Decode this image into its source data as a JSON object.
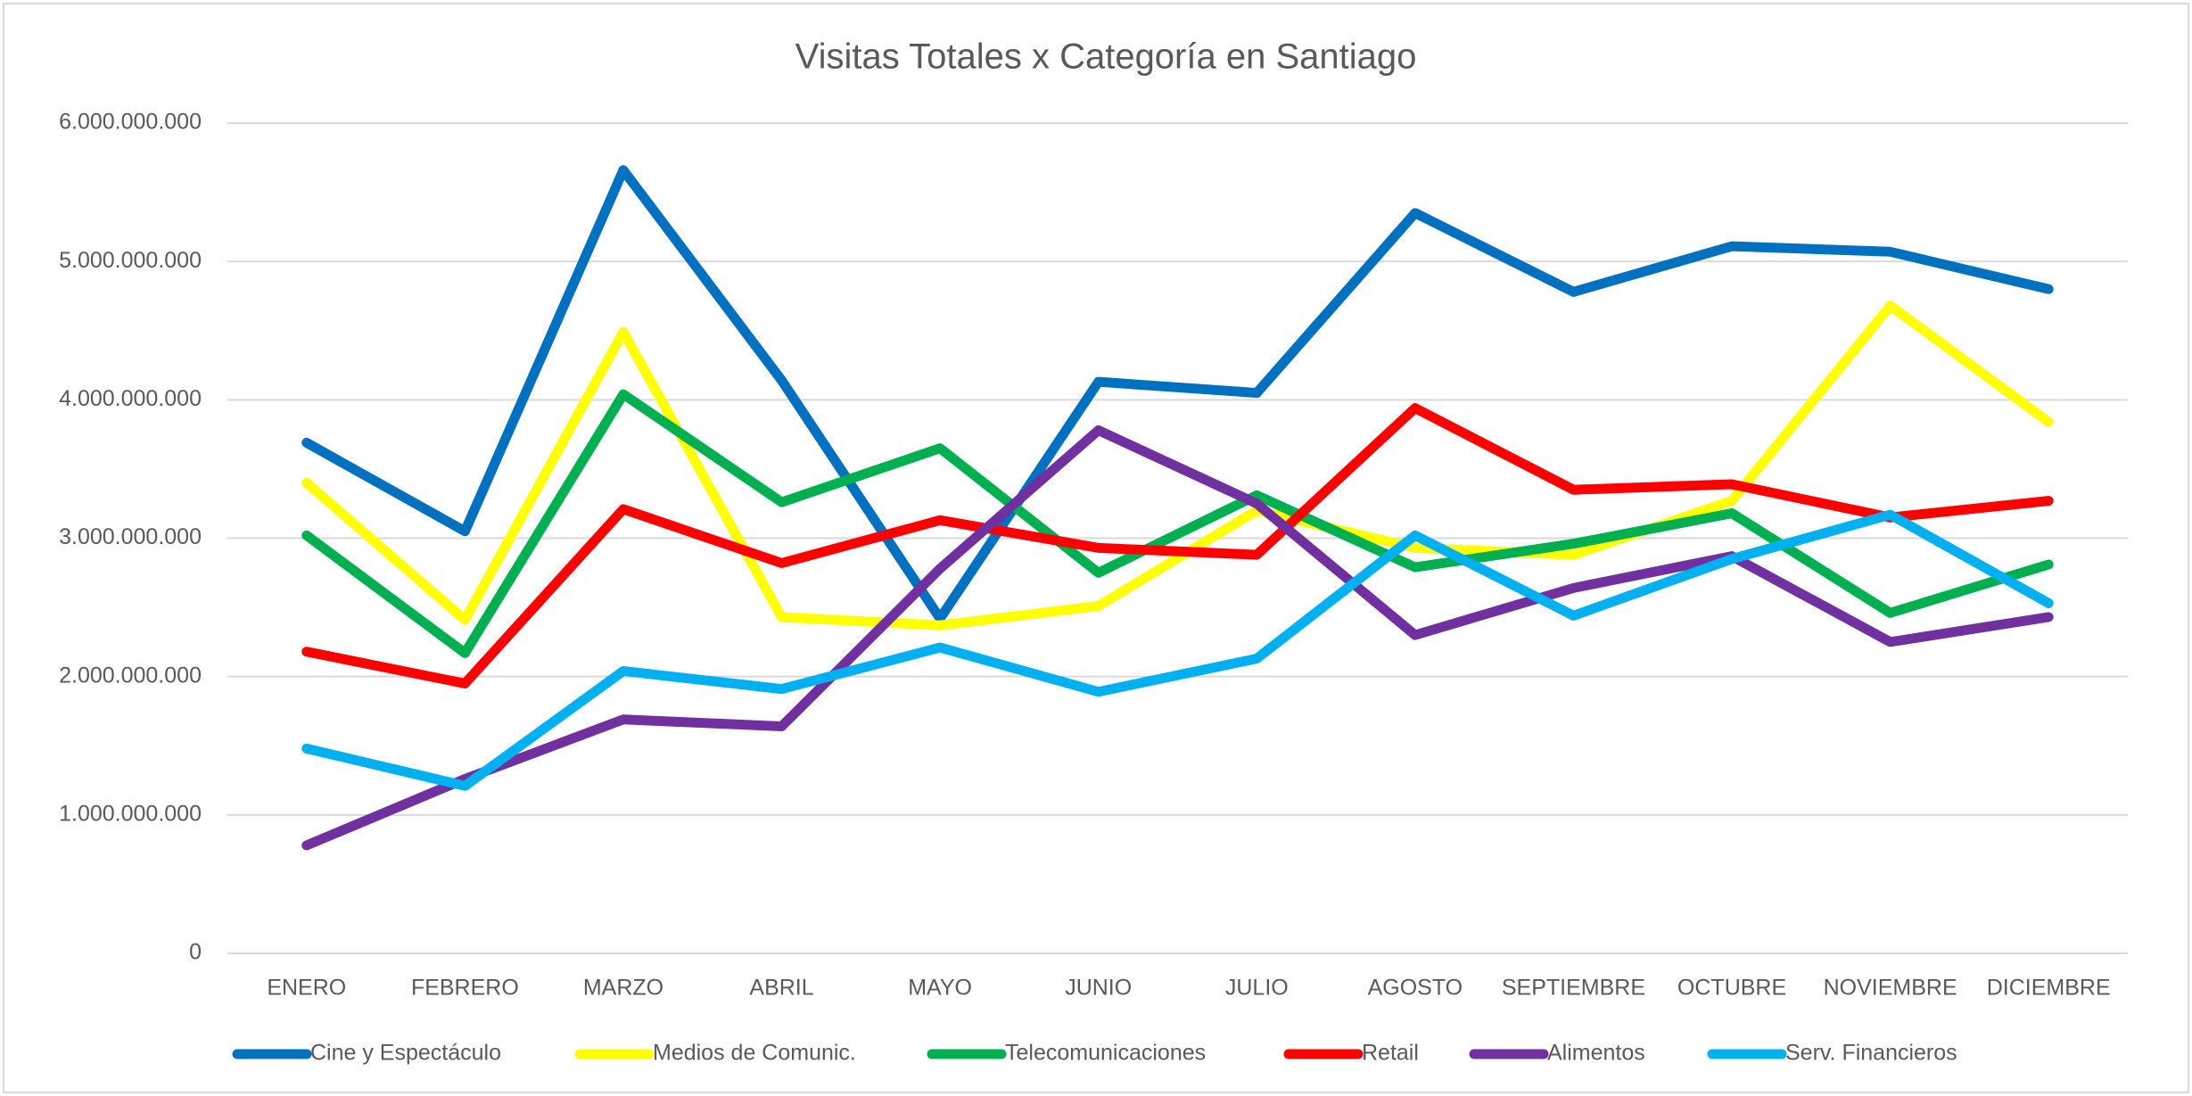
{
  "chart_data": {
    "type": "line",
    "title": "Visitas Totales x Categoría en Santiago",
    "categories": [
      "ENERO",
      "FEBRERO",
      "MARZO",
      "ABRIL",
      "MAYO",
      "JUNIO",
      "JULIO",
      "AGOSTO",
      "SEPTIEMBRE",
      "OCTUBRE",
      "NOVIEMBRE",
      "DICIEMBRE"
    ],
    "series": [
      {
        "name": "Cine y Espectáculo",
        "color": "#0070c0",
        "values": [
          3690000000,
          3050000000,
          5660000000,
          4140000000,
          2420000000,
          4130000000,
          4050000000,
          5350000000,
          4780000000,
          5110000000,
          5070000000,
          4800000000
        ]
      },
      {
        "name": "Medios de Comunic.",
        "color": "#ffff00",
        "values": [
          3400000000,
          2410000000,
          4490000000,
          2430000000,
          2370000000,
          2510000000,
          3200000000,
          2930000000,
          2880000000,
          3270000000,
          4680000000,
          3840000000
        ]
      },
      {
        "name": "Telecomunicaciones",
        "color": "#00b050",
        "values": [
          3020000000,
          2170000000,
          4040000000,
          3260000000,
          3650000000,
          2750000000,
          3310000000,
          2790000000,
          2960000000,
          3180000000,
          2460000000,
          2810000000
        ]
      },
      {
        "name": "Retail",
        "color": "#ff0000",
        "values": [
          2180000000,
          1950000000,
          3210000000,
          2820000000,
          3130000000,
          2930000000,
          2880000000,
          3940000000,
          3350000000,
          3390000000,
          3150000000,
          3270000000
        ]
      },
      {
        "name": "Alimentos",
        "color": "#7030a0",
        "values": [
          780000000,
          1260000000,
          1690000000,
          1640000000,
          2780000000,
          3780000000,
          3250000000,
          2300000000,
          2640000000,
          2870000000,
          2250000000,
          2430000000
        ]
      },
      {
        "name": "Serv. Financieros",
        "color": "#00b0f0",
        "values": [
          1480000000,
          1210000000,
          2040000000,
          1910000000,
          2210000000,
          1890000000,
          2130000000,
          3020000000,
          2440000000,
          2850000000,
          3170000000,
          2530000000
        ]
      }
    ],
    "ylim": [
      0,
      6000000000
    ],
    "yticks": [
      0,
      {
        "value": 1000000000,
        "label": "1.000.000.000"
      },
      {
        "value": 2000000000,
        "label": "2.000.000.000"
      },
      {
        "value": 3000000000,
        "label": "3.000.000.000"
      },
      {
        "value": 4000000000,
        "label": "4.000.000.000"
      },
      {
        "value": 5000000000,
        "label": "5.000.000.000"
      },
      {
        "value": 6000000000,
        "label": "6.000.000.000"
      }
    ],
    "grid": true,
    "legend": "bottom"
  }
}
